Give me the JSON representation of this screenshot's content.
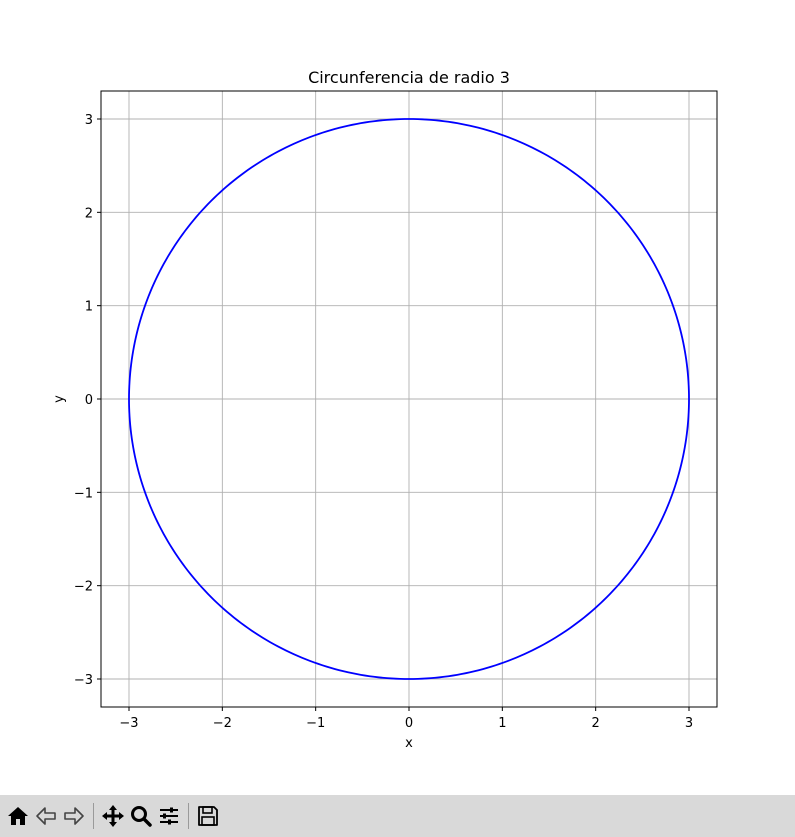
{
  "chart_data": {
    "type": "line",
    "title": "Circunferencia de radio 3",
    "xlabel": "x",
    "ylabel": "y",
    "xlim": [
      -3.3,
      3.3
    ],
    "ylim": [
      -3.3,
      3.3
    ],
    "xticks": [
      -3,
      -2,
      -1,
      0,
      1,
      2,
      3
    ],
    "yticks": [
      -3,
      -2,
      -1,
      0,
      1,
      2,
      3
    ],
    "xtick_labels": [
      "−3",
      "−2",
      "−1",
      "0",
      "1",
      "2",
      "3"
    ],
    "ytick_labels": [
      "−3",
      "−2",
      "−1",
      "0",
      "1",
      "2",
      "3"
    ],
    "grid": true,
    "series": [
      {
        "shape": "circle",
        "center": [
          0,
          0
        ],
        "radius": 3,
        "color": "#0000ff"
      }
    ]
  },
  "toolbar": {
    "buttons": [
      {
        "icon": "home-icon"
      },
      {
        "icon": "back-arrow-icon"
      },
      {
        "icon": "forward-arrow-icon"
      },
      {
        "icon": "pan-icon"
      },
      {
        "icon": "zoom-icon"
      },
      {
        "icon": "configure-subplots-icon"
      },
      {
        "icon": "save-icon"
      }
    ]
  }
}
